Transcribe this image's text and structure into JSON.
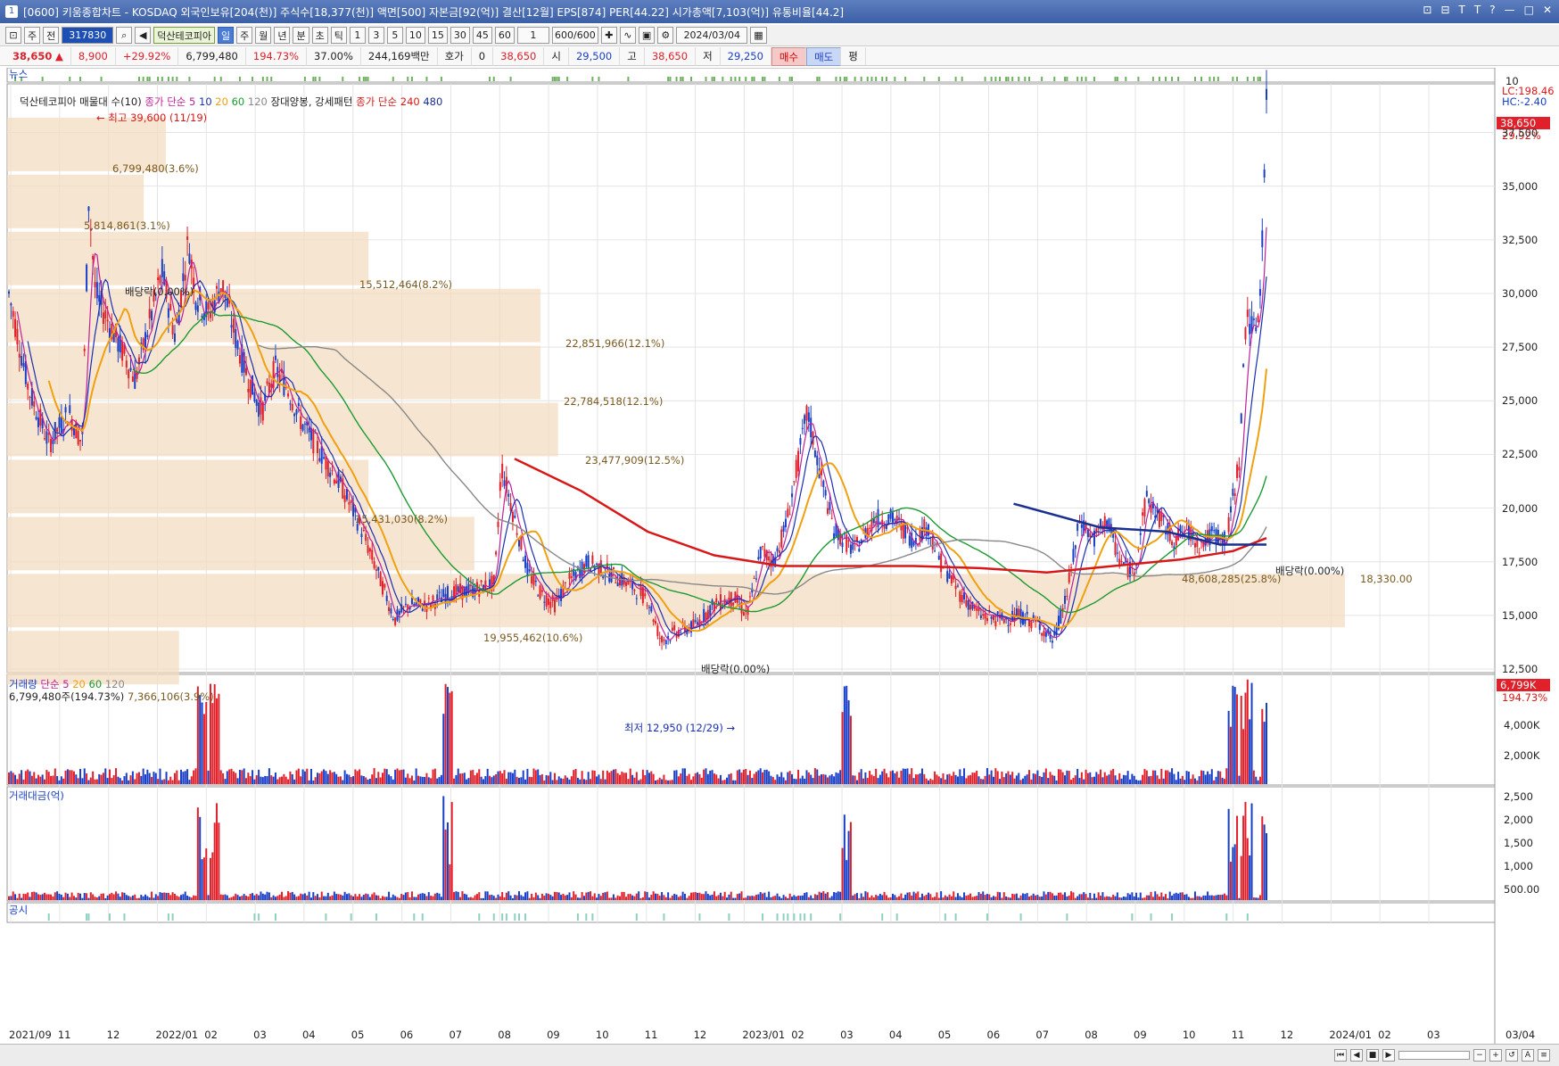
{
  "titlebar": {
    "num": "1",
    "title": "[0600] 키움종합차트 - KOSDAQ 외국인보유[204(천)] 주식수[18,377(천)] 액면[500] 자본금[92(억)] 결산[12월] EPS[874] PER[44.22] 시가총액[7,103(억)] 유통비율[44.2]",
    "buttons": [
      "⊡",
      "⊟",
      "T",
      "T",
      "?",
      "—",
      "□",
      "✕"
    ]
  },
  "toolbar": {
    "market": "주",
    "market2": "전",
    "code": "317830",
    "name": "덕산테코피아",
    "period": [
      "일",
      "주",
      "월",
      "년",
      "분",
      "초",
      "틱"
    ],
    "period_selected": "일",
    "intervals": [
      "1",
      "3",
      "5",
      "10",
      "15",
      "30",
      "45",
      "60"
    ],
    "count_sel": "1",
    "bars": "600/600",
    "date": "2024/03/04"
  },
  "infobar": {
    "price": "38,650",
    "arrow": "▲",
    "change": "8,900",
    "rate": "+29.92%",
    "volume": "6,799,480",
    "vol_ratio": "194.73%",
    "turnover": "37.00%",
    "amount": "244,169백만",
    "hoga_label": "호가",
    "hoga": "0",
    "hoga_price": "38,650",
    "open_label": "시",
    "open": "29,500",
    "high_label": "고",
    "high": "38,650",
    "low_label": "저",
    "low": "29,250",
    "buy": "매수",
    "sell": "매도",
    "pyeong": "평"
  },
  "chart": {
    "news_label": "뉴스",
    "news_axis": "10",
    "price_legend": {
      "vp": "덕산테코피아 매물대 수(10)",
      "ma_short": "종가 단순",
      "ma_short_periods": [
        "5",
        "10",
        "20",
        "60",
        "120"
      ],
      "pattern": "장대양봉, 강세패턴",
      "ma_long": "종가 단순",
      "ma_long_periods": [
        "240",
        "480"
      ]
    },
    "price_axis": [
      "37,500",
      "35,000",
      "32,500",
      "30,000",
      "27,500",
      "25,000",
      "22,500",
      "20,000",
      "17,500",
      "15,000",
      "12,500"
    ],
    "lc_hc": [
      "LC:198.46",
      "HC:-2.40"
    ],
    "last_price_tag": "38,650",
    "last_rate_tag": "29.92%",
    "annotations": {
      "high": "최고 39,600 (11/19)",
      "low": "최저 12,950 (12/29)",
      "div1": "배당락(0.00%)",
      "div2": "배당락(0.00%)",
      "div3": "배당락(0.00%)"
    },
    "volume_profile": [
      {
        "label": "6,799,480(3.6%)"
      },
      {
        "label": "5,814,861(3.1%)"
      },
      {
        "label": "15,512,464(8.2%)"
      },
      {
        "label": "22,851,966(12.1%)"
      },
      {
        "label": "22,784,518(12.1%)"
      },
      {
        "label": "23,477,909(12.5%)"
      },
      {
        "label": "15,431,030(8.2%)"
      },
      {
        "label": "19,955,462(10.6%)"
      },
      {
        "label": "48,608,285(25.8%)"
      },
      {
        "label": "7,366,106(3.9%)"
      }
    ],
    "current_box_label": "18,330.00",
    "volume_legend": {
      "title": "거래량",
      "ma": "단순",
      "periods": [
        "5",
        "20",
        "60",
        "120"
      ],
      "value": "6,799,480주(194.73%)"
    },
    "volume_axis": [
      "4,000K",
      "2,000K"
    ],
    "volume_tag": "6,799K",
    "volume_tag_rate": "194.73%",
    "amount_legend": "거래대금(억)",
    "amount_axis": [
      "2,500",
      "2,000",
      "1,500",
      "1,000",
      "500.00"
    ],
    "disclosure_label": "공시",
    "x_axis": [
      "2021/09",
      "11",
      "12",
      "2022/01",
      "02",
      "03",
      "04",
      "05",
      "06",
      "07",
      "08",
      "09",
      "10",
      "11",
      "12",
      "2023/01",
      "02",
      "03",
      "04",
      "05",
      "06",
      "07",
      "08",
      "09",
      "10",
      "11",
      "12",
      "2024/01",
      "02",
      "03"
    ],
    "x_axis_right": "03/04"
  },
  "chart_data": {
    "type": "candlestick",
    "title": "덕산테코피아",
    "ylim": [
      12500,
      39600
    ],
    "colors": {
      "up": "#e0202a",
      "down": "#1a3fc7",
      "ma5": "#c0209a",
      "ma10": "#1a2fb0",
      "ma20": "#f0a010",
      "ma60": "#1a9a30",
      "ma120": "#888888",
      "ma240": "#d81818",
      "ma480": "#1a2f90"
    },
    "series": [
      {
        "name": "close_path",
        "points": [
          [
            0,
            30000
          ],
          [
            0.015,
            25500
          ],
          [
            0.03,
            23000
          ],
          [
            0.045,
            24500
          ],
          [
            0.055,
            23000
          ],
          [
            0.06,
            34500
          ],
          [
            0.065,
            30000
          ],
          [
            0.08,
            28000
          ],
          [
            0.095,
            26000
          ],
          [
            0.105,
            28500
          ],
          [
            0.115,
            31000
          ],
          [
            0.125,
            28000
          ],
          [
            0.135,
            32500
          ],
          [
            0.14,
            30000
          ],
          [
            0.15,
            29000
          ],
          [
            0.16,
            30500
          ],
          [
            0.17,
            28000
          ],
          [
            0.18,
            26000
          ],
          [
            0.19,
            24500
          ],
          [
            0.2,
            26500
          ],
          [
            0.21,
            25500
          ],
          [
            0.22,
            24000
          ],
          [
            0.235,
            22500
          ],
          [
            0.25,
            21000
          ],
          [
            0.265,
            19000
          ],
          [
            0.28,
            16500
          ],
          [
            0.29,
            14800
          ],
          [
            0.3,
            15500
          ],
          [
            0.315,
            15500
          ],
          [
            0.33,
            16000
          ],
          [
            0.35,
            16200
          ],
          [
            0.365,
            16500
          ],
          [
            0.37,
            22000
          ],
          [
            0.38,
            19500
          ],
          [
            0.39,
            17000
          ],
          [
            0.4,
            16000
          ],
          [
            0.41,
            15500
          ],
          [
            0.42,
            16500
          ],
          [
            0.435,
            17500
          ],
          [
            0.45,
            17000
          ],
          [
            0.465,
            16500
          ],
          [
            0.48,
            15800
          ],
          [
            0.49,
            13800
          ],
          [
            0.5,
            14200
          ],
          [
            0.515,
            14500
          ],
          [
            0.53,
            15500
          ],
          [
            0.545,
            15800
          ],
          [
            0.555,
            15000
          ],
          [
            0.565,
            18000
          ],
          [
            0.575,
            17500
          ],
          [
            0.585,
            19500
          ],
          [
            0.6,
            24500
          ],
          [
            0.61,
            21500
          ],
          [
            0.62,
            19000
          ],
          [
            0.635,
            18000
          ],
          [
            0.65,
            19500
          ],
          [
            0.665,
            19500
          ],
          [
            0.68,
            18500
          ],
          [
            0.69,
            19200
          ],
          [
            0.7,
            17500
          ],
          [
            0.715,
            16000
          ],
          [
            0.73,
            15000
          ],
          [
            0.745,
            14800
          ],
          [
            0.76,
            15000
          ],
          [
            0.775,
            14500
          ],
          [
            0.785,
            13800
          ],
          [
            0.795,
            16000
          ],
          [
            0.805,
            19500
          ],
          [
            0.815,
            18500
          ],
          [
            0.825,
            19500
          ],
          [
            0.835,
            17500
          ],
          [
            0.845,
            17000
          ],
          [
            0.855,
            20500
          ],
          [
            0.865,
            19500
          ],
          [
            0.875,
            18500
          ],
          [
            0.885,
            19000
          ],
          [
            0.895,
            18300
          ],
          [
            0.905,
            18800
          ],
          [
            0.915,
            18500
          ],
          [
            0.925,
            22500
          ],
          [
            0.93,
            29500
          ],
          [
            0.935,
            28000
          ],
          [
            0.94,
            29500
          ],
          [
            0.945,
            38650
          ]
        ]
      },
      {
        "name": "종가 단순 240",
        "points": [
          [
            0.38,
            22300
          ],
          [
            0.43,
            20800
          ],
          [
            0.48,
            18900
          ],
          [
            0.53,
            17800
          ],
          [
            0.58,
            17300
          ],
          [
            0.63,
            17300
          ],
          [
            0.68,
            17300
          ],
          [
            0.73,
            17200
          ],
          [
            0.78,
            17000
          ],
          [
            0.83,
            17300
          ],
          [
            0.88,
            17600
          ],
          [
            0.92,
            18000
          ],
          [
            0.945,
            18600
          ]
        ]
      },
      {
        "name": "종가 단순 480",
        "points": [
          [
            0.755,
            20200
          ],
          [
            0.82,
            19100
          ],
          [
            0.87,
            18900
          ],
          [
            0.91,
            18300
          ],
          [
            0.945,
            18300
          ]
        ]
      }
    ]
  }
}
